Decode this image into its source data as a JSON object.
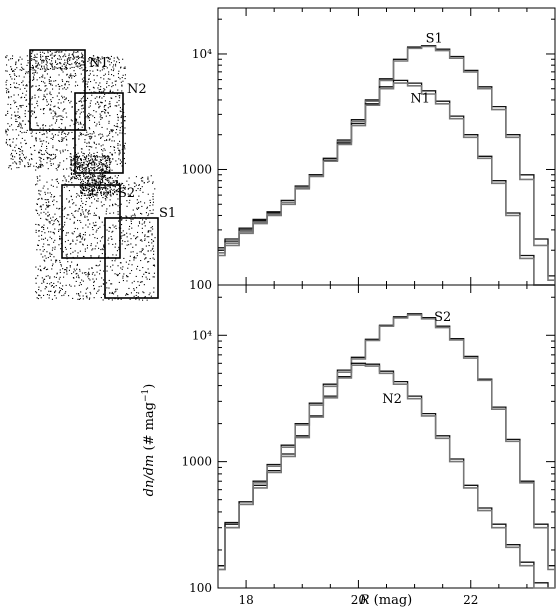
{
  "chart_data": [
    {
      "type": "line",
      "panel": "top",
      "xlim": [
        17.5,
        23.5
      ],
      "ylim": [
        100,
        25000
      ],
      "yscale": "log",
      "yticks": [
        {
          "value": 100,
          "label": "100"
        },
        {
          "value": 1000,
          "label": "1000"
        },
        {
          "value": 10000,
          "label": "10⁴"
        }
      ],
      "series": [
        {
          "name": "S1",
          "style": "step",
          "color": "#111111",
          "label_at": [
            21.35,
            12600
          ],
          "x": [
            17.5,
            17.75,
            18.0,
            18.25,
            18.5,
            18.75,
            19.0,
            19.25,
            19.5,
            19.75,
            20.0,
            20.25,
            20.5,
            20.75,
            21.0,
            21.25,
            21.5,
            21.75,
            22.0,
            22.25,
            22.5,
            22.75,
            23.0,
            23.25,
            23.5
          ],
          "y": [
            200,
            240,
            300,
            360,
            420,
            520,
            700,
            900,
            1250,
            1800,
            2700,
            4000,
            6100,
            9000,
            11500,
            11800,
            11000,
            9500,
            7200,
            5200,
            3500,
            2000,
            900,
            250,
            120
          ]
        },
        {
          "name": "S1-repeat",
          "style": "step",
          "color": "#777777",
          "x": [
            17.5,
            17.75,
            18.0,
            18.25,
            18.5,
            18.75,
            19.0,
            19.25,
            19.5,
            19.75,
            20.0,
            20.25,
            20.5,
            20.75,
            21.0,
            21.25,
            21.5,
            21.75,
            22.0,
            22.25,
            22.5,
            22.75,
            23.0,
            23.25,
            23.5
          ],
          "y": [
            180,
            220,
            280,
            340,
            400,
            500,
            680,
            870,
            1200,
            1750,
            2600,
            3900,
            5900,
            8700,
            11200,
            11600,
            10700,
            9200,
            7000,
            5000,
            3300,
            1900,
            820,
            220,
            110
          ]
        },
        {
          "name": "N1",
          "style": "step",
          "color": "#111111",
          "label_at": [
            21.1,
            3800
          ],
          "x": [
            17.5,
            17.75,
            18.0,
            18.25,
            18.5,
            18.75,
            19.0,
            19.25,
            19.5,
            19.75,
            20.0,
            20.25,
            20.5,
            20.75,
            21.0,
            21.25,
            21.5,
            21.75,
            22.0,
            22.25,
            22.5,
            22.75,
            23.0,
            23.25,
            23.5
          ],
          "y": [
            210,
            250,
            310,
            370,
            430,
            540,
            720,
            900,
            1200,
            1700,
            2500,
            3700,
            5200,
            5900,
            5600,
            4800,
            3900,
            2900,
            2000,
            1300,
            800,
            420,
            180,
            90,
            90
          ]
        },
        {
          "name": "N1-repeat",
          "style": "step",
          "color": "#777777",
          "x": [
            17.5,
            17.75,
            18.0,
            18.25,
            18.5,
            18.75,
            19.0,
            19.25,
            19.5,
            19.75,
            20.0,
            20.25,
            20.5,
            20.75,
            21.0,
            21.25,
            21.5,
            21.75,
            22.0,
            22.25,
            22.5,
            22.75,
            23.0,
            23.25,
            23.5
          ],
          "y": [
            190,
            230,
            290,
            350,
            410,
            520,
            700,
            880,
            1180,
            1650,
            2400,
            3600,
            5000,
            5600,
            5300,
            4500,
            3700,
            2750,
            1900,
            1250,
            760,
            400,
            170,
            85,
            85
          ]
        }
      ]
    },
    {
      "type": "line",
      "panel": "bottom",
      "xlim": [
        17.5,
        23.5
      ],
      "ylim": [
        100,
        25000
      ],
      "yscale": "log",
      "xlabel_prefix": "R",
      "xlabel_rest": " (mag)",
      "ylabel_prefix": "dn/dm",
      "ylabel_rest": " (# mag",
      "ylabel_exp": "−1",
      "ylabel_close": ")",
      "xticks": [
        {
          "value": 18,
          "label": "18"
        },
        {
          "value": 20,
          "label": "20"
        },
        {
          "value": 22,
          "label": "22"
        }
      ],
      "yticks": [
        {
          "value": 100,
          "label": "100"
        },
        {
          "value": 1000,
          "label": "1000"
        },
        {
          "value": 10000,
          "label": "10⁴"
        }
      ],
      "series": [
        {
          "name": "S2",
          "style": "step",
          "color": "#111111",
          "label_at": [
            21.5,
            13000
          ],
          "x": [
            17.5,
            17.75,
            18.0,
            18.25,
            18.5,
            18.75,
            19.0,
            19.25,
            19.5,
            19.75,
            20.0,
            20.25,
            20.5,
            20.75,
            21.0,
            21.25,
            21.5,
            21.75,
            22.0,
            22.25,
            22.5,
            22.75,
            23.0,
            23.25,
            23.5
          ],
          "y": [
            150,
            320,
            480,
            650,
            850,
            1150,
            1600,
            2300,
            3300,
            4700,
            6700,
            9300,
            12000,
            14000,
            14800,
            13800,
            11800,
            9400,
            6800,
            4500,
            2700,
            1500,
            700,
            320,
            150
          ]
        },
        {
          "name": "S2-repeat",
          "style": "step",
          "color": "#777777",
          "x": [
            17.5,
            17.75,
            18.0,
            18.25,
            18.5,
            18.75,
            19.0,
            19.25,
            19.5,
            19.75,
            20.0,
            20.25,
            20.5,
            20.75,
            21.0,
            21.25,
            21.5,
            21.75,
            22.0,
            22.25,
            22.5,
            22.75,
            23.0,
            23.25,
            23.5
          ],
          "y": [
            140,
            300,
            460,
            620,
            820,
            1100,
            1550,
            2250,
            3200,
            4600,
            6500,
            9100,
            11800,
            13700,
            14500,
            13500,
            11500,
            9200,
            6600,
            4400,
            2600,
            1450,
            680,
            300,
            140
          ]
        },
        {
          "name": "N2",
          "style": "step",
          "color": "#111111",
          "label_at": [
            20.6,
            2900
          ],
          "x": [
            17.5,
            17.75,
            18.0,
            18.25,
            18.5,
            18.75,
            19.0,
            19.25,
            19.5,
            19.75,
            20.0,
            20.25,
            20.5,
            20.75,
            21.0,
            21.25,
            21.5,
            21.75,
            22.0,
            22.25,
            22.5,
            22.75,
            23.0,
            23.25,
            23.5
          ],
          "y": [
            150,
            330,
            480,
            700,
            950,
            1350,
            2000,
            2900,
            4100,
            5300,
            6000,
            5900,
            5200,
            4300,
            3300,
            2400,
            1600,
            1050,
            650,
            430,
            320,
            220,
            160,
            110,
            100
          ]
        },
        {
          "name": "N2-repeat",
          "style": "step",
          "color": "#777777",
          "x": [
            17.5,
            17.75,
            18.0,
            18.25,
            18.5,
            18.75,
            19.0,
            19.25,
            19.5,
            19.75,
            20.0,
            20.25,
            20.5,
            20.75,
            21.0,
            21.25,
            21.5,
            21.75,
            22.0,
            22.25,
            22.5,
            22.75,
            23.0,
            23.25,
            23.5
          ],
          "y": [
            140,
            300,
            460,
            680,
            920,
            1300,
            1950,
            2800,
            3950,
            5100,
            5800,
            5700,
            5000,
            4100,
            3150,
            2300,
            1530,
            1000,
            620,
            410,
            300,
            210,
            150,
            100,
            95
          ]
        }
      ]
    }
  ],
  "fields": {
    "labels": [
      {
        "id": "N1",
        "text": "N1"
      },
      {
        "id": "N2",
        "text": "N2"
      },
      {
        "id": "S2",
        "text": "S2"
      },
      {
        "id": "S1",
        "text": "S1"
      }
    ]
  }
}
